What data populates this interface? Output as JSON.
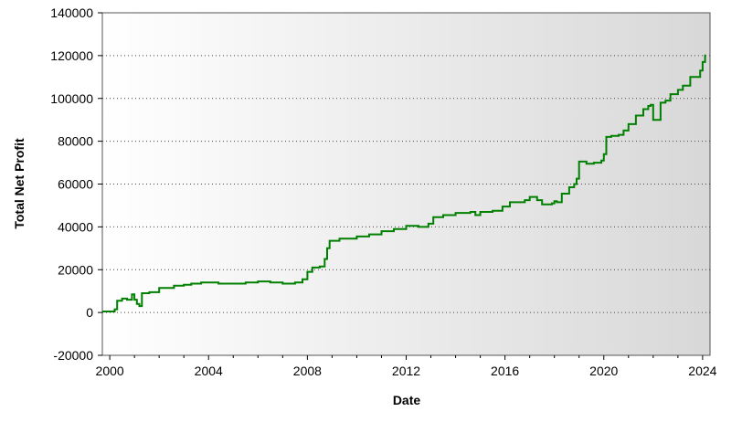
{
  "chart_data": {
    "type": "line",
    "title": "",
    "xlabel": "Date",
    "ylabel": "Total Net Profit",
    "xlim": [
      1999.7,
      2024.3
    ],
    "ylim": [
      -20000,
      140000
    ],
    "x_ticks": [
      2000,
      2004,
      2008,
      2012,
      2016,
      2020,
      2024
    ],
    "x_tick_labels": [
      "2000",
      "2004",
      "2008",
      "2012",
      "2016",
      "2020",
      "2024"
    ],
    "y_ticks": [
      -20000,
      0,
      20000,
      40000,
      60000,
      80000,
      100000,
      120000,
      140000
    ],
    "y_tick_labels": [
      "-20000",
      "0",
      "20000",
      "40000",
      "60000",
      "80000",
      "100000",
      "120000",
      "140000"
    ],
    "grid": "horizontal dotted",
    "background": "horizontal gradient white to light gray",
    "line_color": "#008000",
    "series": [
      {
        "x": [
          1999.7,
          2000.1,
          2000.2,
          2000.3,
          2000.5,
          2000.7,
          2000.9,
          2001.0,
          2001.1,
          2001.2,
          2001.3,
          2001.6,
          2002.0,
          2002.3,
          2002.6,
          2003.0,
          2003.3,
          2003.7,
          2004.0,
          2004.4,
          2005.0,
          2005.5,
          2006.0,
          2006.5,
          2007.0,
          2007.5,
          2007.8,
          2008.0,
          2008.2,
          2008.5,
          2008.7,
          2008.8,
          2008.9,
          2009.3,
          2010.0,
          2010.5,
          2011.0,
          2011.5,
          2012.0,
          2012.5,
          2012.9,
          2013.1,
          2013.5,
          2014.0,
          2014.6,
          2014.8,
          2015.0,
          2015.5,
          2015.9,
          2016.2,
          2016.8,
          2017.0,
          2017.3,
          2017.5,
          2017.9,
          2018.0,
          2018.1,
          2018.3,
          2018.6,
          2018.8,
          2018.9,
          2019.0,
          2019.3,
          2019.6,
          2019.9,
          2020.0,
          2020.1,
          2020.3,
          2020.6,
          2020.8,
          2021.0,
          2021.3,
          2021.6,
          2021.8,
          2021.9,
          2022.0,
          2022.3,
          2022.5,
          2022.7,
          2023.0,
          2023.2,
          2023.5,
          2023.8,
          2023.9,
          2024.0,
          2024.1
        ],
        "y": [
          500,
          500,
          1500,
          5500,
          6500,
          6000,
          8500,
          6000,
          4000,
          3000,
          9000,
          9500,
          11500,
          11500,
          12500,
          13000,
          13500,
          14000,
          14000,
          13500,
          13500,
          14000,
          14500,
          14000,
          13500,
          14000,
          15500,
          19000,
          21000,
          21500,
          25000,
          30000,
          33500,
          34500,
          35500,
          36500,
          38000,
          39000,
          40500,
          40000,
          41500,
          44500,
          45500,
          46500,
          47000,
          45500,
          47000,
          47500,
          49500,
          51500,
          52500,
          54000,
          52500,
          50500,
          51000,
          52000,
          51500,
          55500,
          58500,
          60000,
          62500,
          70500,
          69500,
          70000,
          71000,
          74000,
          82000,
          82500,
          83000,
          85000,
          88000,
          92000,
          95000,
          96500,
          97000,
          90000,
          98000,
          99000,
          102000,
          104000,
          106000,
          110000,
          110000,
          113000,
          117000,
          120500
        ]
      }
    ]
  }
}
